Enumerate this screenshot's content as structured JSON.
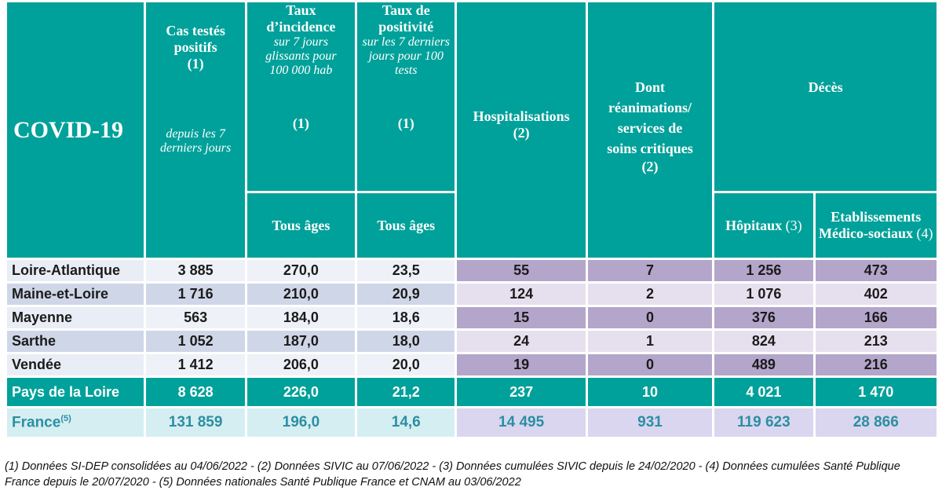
{
  "title": "COVID-19",
  "columns": [
    {
      "title": "Cas testés positifs",
      "note": "(1)",
      "detail": "depuis les 7 derniers jours"
    },
    {
      "title": "Taux d’incidence",
      "detail": "sur 7 jours glissants pour 100 000 hab",
      "note": "(1)",
      "sub": "Tous âges"
    },
    {
      "title": "Taux de positivité",
      "detail": "sur les 7 derniers jours pour 100 tests",
      "note": "(1)",
      "sub": "Tous âges"
    },
    {
      "title": "Hospitalisations",
      "note": "(2)"
    },
    {
      "title": "Dont réanimations/ services de soins critiques",
      "note": "(2)"
    }
  ],
  "group": {
    "title": "Décès",
    "columns": [
      {
        "title": "Hôpitaux",
        "note": "(3)"
      },
      {
        "title": "Etablissements Médico-sociaux",
        "note": "(4)"
      }
    ]
  },
  "rows": [
    {
      "name": "Loire-Atlantique",
      "values": [
        "3 885",
        "270,0",
        "23,5",
        "55",
        "7",
        "1 256",
        "473"
      ]
    },
    {
      "name": "Maine-et-Loire",
      "values": [
        "1 716",
        "210,0",
        "20,9",
        "124",
        "2",
        "1 076",
        "402"
      ]
    },
    {
      "name": "Mayenne",
      "values": [
        "563",
        "184,0",
        "18,6",
        "15",
        "0",
        "376",
        "166"
      ]
    },
    {
      "name": "Sarthe",
      "values": [
        "1 052",
        "187,0",
        "18,0",
        "24",
        "1",
        "824",
        "213"
      ]
    },
    {
      "name": "Vendée",
      "values": [
        "1 412",
        "206,0",
        "20,0",
        "19",
        "0",
        "489",
        "216"
      ]
    }
  ],
  "total": {
    "name": "Pays de la Loire",
    "values": [
      "8 628",
      "226,0",
      "21,2",
      "237",
      "10",
      "4 021",
      "1 470"
    ]
  },
  "france": {
    "name": "France",
    "note": "(5)",
    "values": [
      "131 859",
      "196,0",
      "14,6",
      "14 495",
      "931",
      "119 623",
      "28 866"
    ]
  },
  "footnote": "(1) Données SI-DEP consolidées au 04/06/2022 -  (2) Données SIVIC au 07/06/2022 - (3) Données cumulées SIVIC depuis le 24/02/2020 - (4) Données cumulées Santé Publique France depuis le 20/07/2020 - (5) Données nationales Santé Publique France et CNAM au 03/06/2022"
}
